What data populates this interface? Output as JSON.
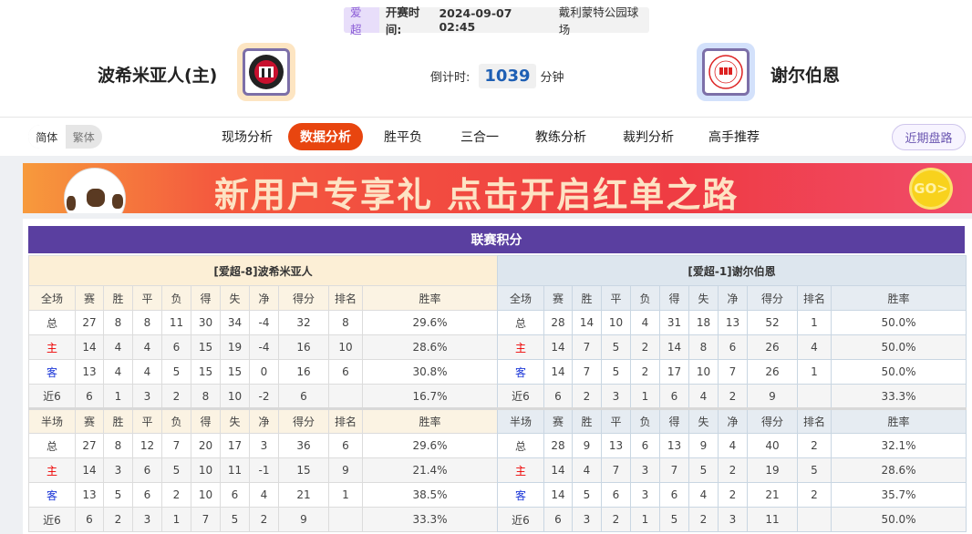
{
  "match": {
    "league": "爱超",
    "time_label": "开赛时间:",
    "time": "2024-09-07 02:45",
    "venue": "戴利蒙特公园球场",
    "home": "波希米亚人(主)",
    "away": "谢尔伯恩",
    "countdown_label": "倒计时:",
    "countdown": "1039",
    "countdown_unit": "分钟"
  },
  "nav": {
    "lang": [
      "简体",
      "繁体"
    ],
    "tabs": [
      "现场分析",
      "数据分析",
      "胜平负",
      "三合一",
      "教练分析",
      "裁判分析",
      "高手推荐"
    ],
    "active_tab": "数据分析",
    "recent": "近期盘路"
  },
  "banner": {
    "text": "新用户专享礼  点击开启红单之路",
    "go": "GO>"
  },
  "standings": {
    "title": "联赛积分",
    "cols_full": [
      "全场",
      "赛",
      "胜",
      "平",
      "负",
      "得",
      "失",
      "净",
      "得分",
      "排名",
      "胜率"
    ],
    "cols_half": [
      "半场",
      "赛",
      "胜",
      "平",
      "负",
      "得",
      "失",
      "净",
      "得分",
      "排名",
      "胜率"
    ],
    "home": {
      "header": "[爱超-8]波希米亚人",
      "full": [
        [
          "总",
          "27",
          "8",
          "8",
          "11",
          "30",
          "34",
          "-4",
          "32",
          "8",
          "29.6%"
        ],
        [
          "主",
          "14",
          "4",
          "4",
          "6",
          "15",
          "19",
          "-4",
          "16",
          "10",
          "28.6%"
        ],
        [
          "客",
          "13",
          "4",
          "4",
          "5",
          "15",
          "15",
          "0",
          "16",
          "6",
          "30.8%"
        ],
        [
          "近6",
          "6",
          "1",
          "3",
          "2",
          "8",
          "10",
          "-2",
          "6",
          "",
          "16.7%"
        ]
      ],
      "half": [
        [
          "总",
          "27",
          "8",
          "12",
          "7",
          "20",
          "17",
          "3",
          "36",
          "6",
          "29.6%"
        ],
        [
          "主",
          "14",
          "3",
          "6",
          "5",
          "10",
          "11",
          "-1",
          "15",
          "9",
          "21.4%"
        ],
        [
          "客",
          "13",
          "5",
          "6",
          "2",
          "10",
          "6",
          "4",
          "21",
          "1",
          "38.5%"
        ],
        [
          "近6",
          "6",
          "2",
          "3",
          "1",
          "7",
          "5",
          "2",
          "9",
          "",
          "33.3%"
        ]
      ]
    },
    "away": {
      "header": "[爱超-1]谢尔伯恩",
      "full": [
        [
          "总",
          "28",
          "14",
          "10",
          "4",
          "31",
          "18",
          "13",
          "52",
          "1",
          "50.0%"
        ],
        [
          "主",
          "14",
          "7",
          "5",
          "2",
          "14",
          "8",
          "6",
          "26",
          "4",
          "50.0%"
        ],
        [
          "客",
          "14",
          "7",
          "5",
          "2",
          "17",
          "10",
          "7",
          "26",
          "1",
          "50.0%"
        ],
        [
          "近6",
          "6",
          "2",
          "3",
          "1",
          "6",
          "4",
          "2",
          "9",
          "",
          "33.3%"
        ]
      ],
      "half": [
        [
          "总",
          "28",
          "9",
          "13",
          "6",
          "13",
          "9",
          "4",
          "40",
          "2",
          "32.1%"
        ],
        [
          "主",
          "14",
          "4",
          "7",
          "3",
          "7",
          "5",
          "2",
          "19",
          "5",
          "28.6%"
        ],
        [
          "客",
          "14",
          "5",
          "6",
          "3",
          "6",
          "4",
          "2",
          "21",
          "2",
          "35.7%"
        ],
        [
          "近6",
          "6",
          "3",
          "2",
          "1",
          "5",
          "2",
          "3",
          "11",
          "",
          "50.0%"
        ]
      ]
    }
  }
}
